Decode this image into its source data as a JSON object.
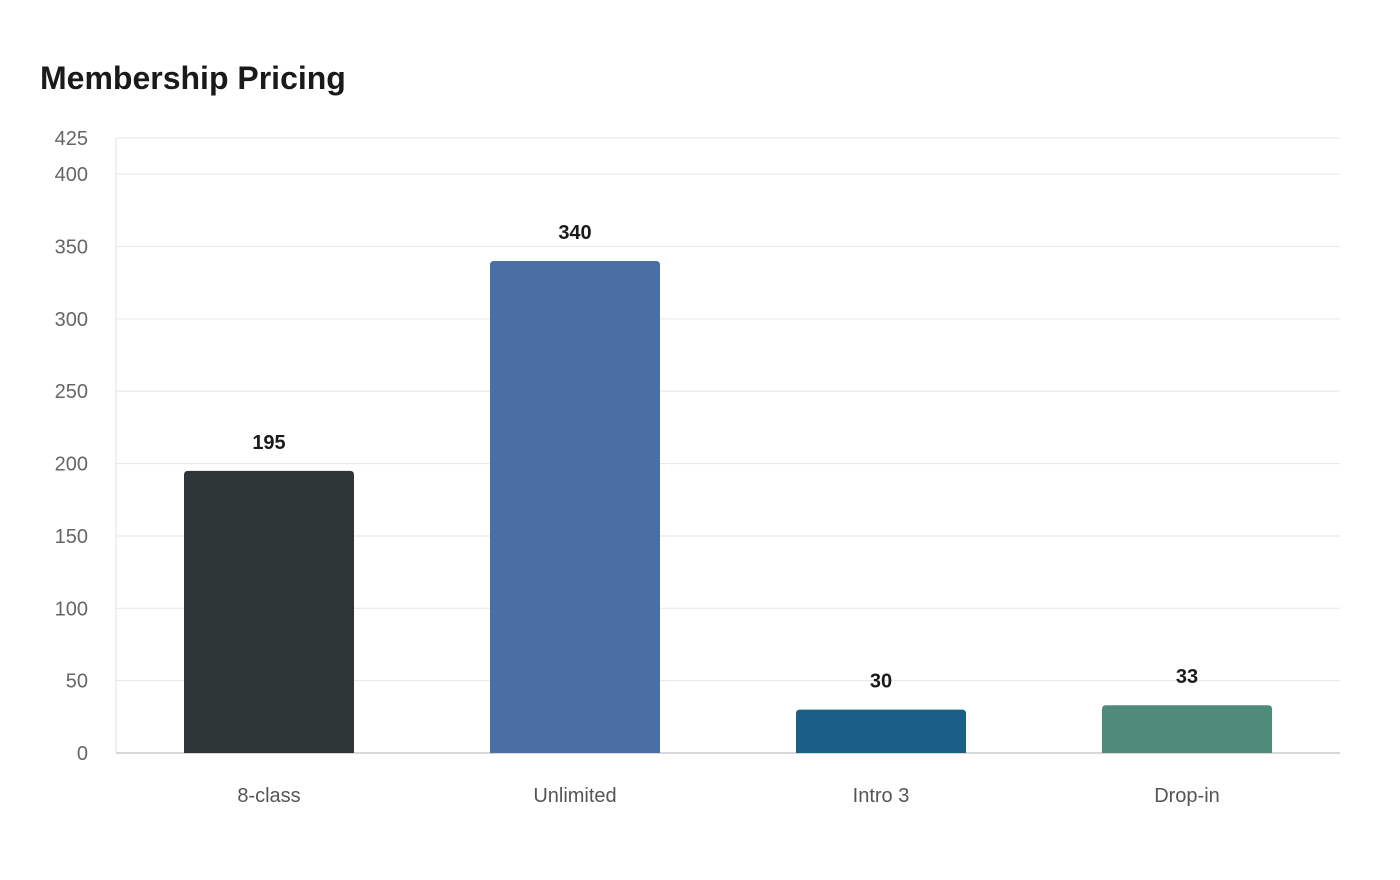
{
  "chart_data": {
    "type": "bar",
    "title": "Membership Pricing",
    "xlabel": "",
    "ylabel": "",
    "categories": [
      "8-class",
      "Unlimited",
      "Intro 3",
      "Drop-in"
    ],
    "values": [
      195,
      340,
      30,
      33
    ],
    "colors": [
      "#2e3537",
      "#4a6fa5",
      "#1a5f87",
      "#4e8c79"
    ],
    "ylim": [
      0,
      425
    ],
    "yticks": [
      0,
      50,
      100,
      150,
      200,
      250,
      300,
      350,
      400,
      425
    ],
    "grid": true,
    "legend": "none"
  }
}
